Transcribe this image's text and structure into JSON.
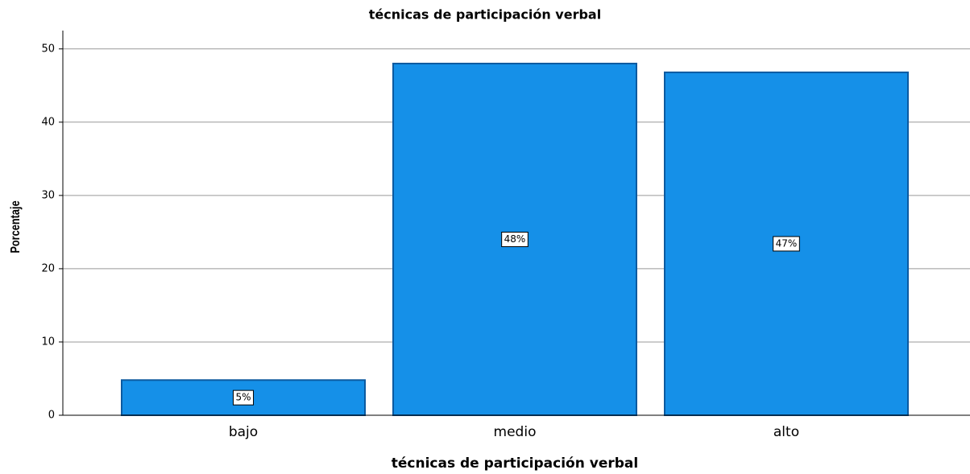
{
  "chart_data": {
    "type": "bar",
    "title": "técnicas de participación verbal",
    "x_label": "técnicas de participación verbal",
    "y_label": "Porcentaje",
    "categories": [
      "bajo",
      "medio",
      "alto"
    ],
    "values": [
      4.8,
      48.0,
      46.8
    ],
    "value_labels": [
      "5%",
      "48%",
      "47%"
    ],
    "color": "#1590e8",
    "ylim": [
      0,
      52.5
    ],
    "yticks": [
      0,
      10,
      20,
      30,
      40,
      50
    ],
    "grid": true
  }
}
